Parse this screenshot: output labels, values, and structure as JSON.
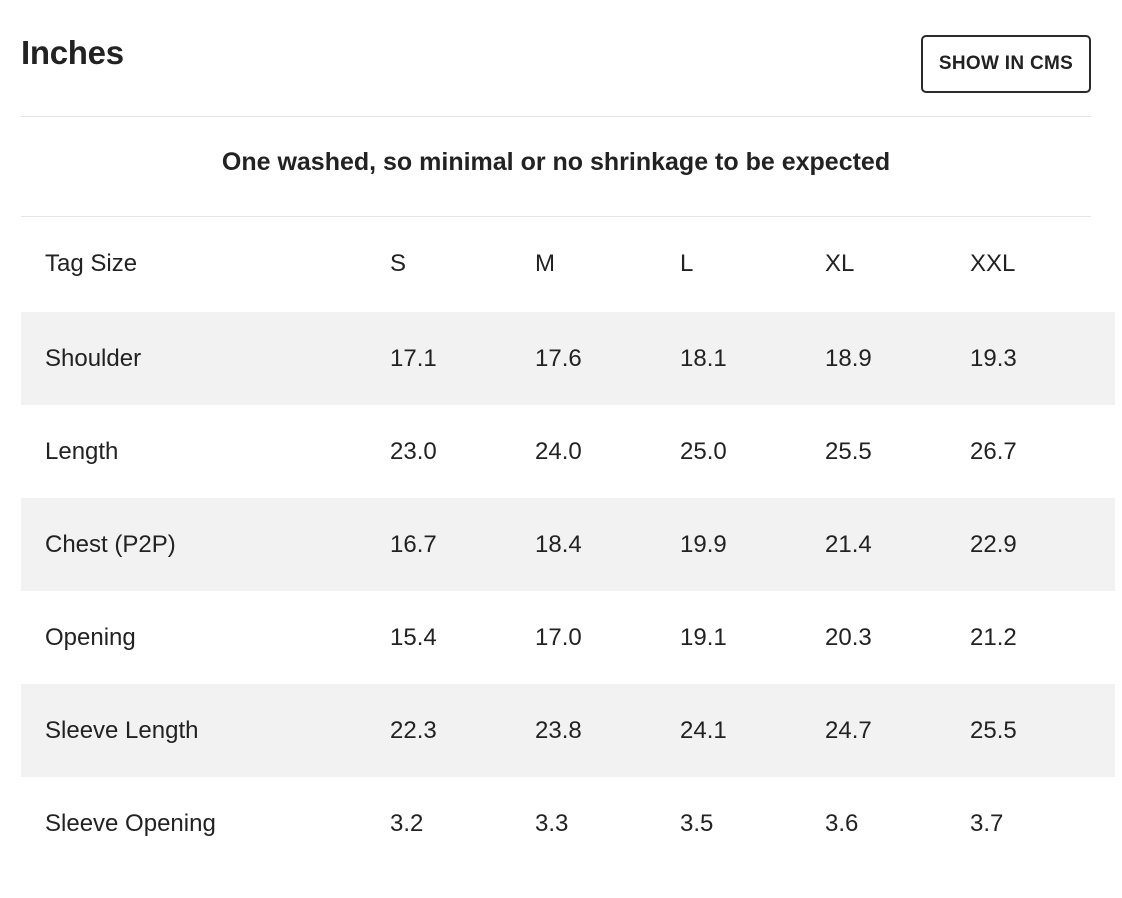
{
  "header": {
    "title": "Inches",
    "cms_button_label": "SHOW IN CMS"
  },
  "note": "One washed, so minimal or no shrinkage to be expected",
  "table": {
    "header_label": "Tag Size",
    "sizes": [
      "S",
      "M",
      "L",
      "XL",
      "XXL"
    ],
    "rows": [
      {
        "label": "Shoulder",
        "values": [
          "17.1",
          "17.6",
          "18.1",
          "18.9",
          "19.3"
        ]
      },
      {
        "label": "Length",
        "values": [
          "23.0",
          "24.0",
          "25.0",
          "25.5",
          "26.7"
        ]
      },
      {
        "label": "Chest (P2P)",
        "values": [
          "16.7",
          "18.4",
          "19.9",
          "21.4",
          "22.9"
        ]
      },
      {
        "label": "Opening",
        "values": [
          "15.4",
          "17.0",
          "19.1",
          "20.3",
          "21.2"
        ]
      },
      {
        "label": "Sleeve Length",
        "values": [
          "22.3",
          "23.8",
          "24.1",
          "24.7",
          "25.5"
        ]
      },
      {
        "label": "Sleeve Opening",
        "values": [
          "3.2",
          "3.3",
          "3.5",
          "3.6",
          "3.7"
        ]
      }
    ]
  },
  "colors": {
    "text": "#222222",
    "row_shade": "#f2f2f2",
    "divider": "#e6e6e6",
    "button_border": "#2a2a2a"
  }
}
